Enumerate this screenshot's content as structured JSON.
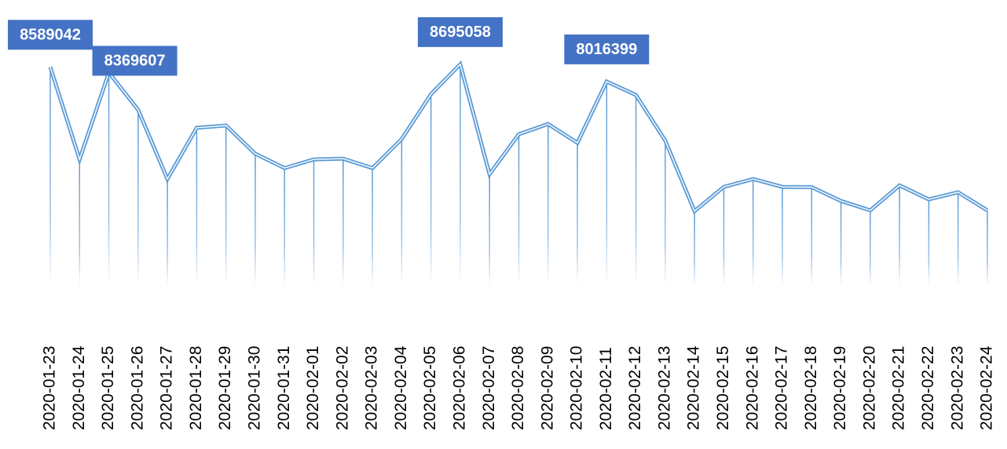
{
  "chart_data": {
    "type": "line",
    "categories": [
      "2020-01-23",
      "2020-01-24",
      "2020-01-25",
      "2020-01-26",
      "2020-01-27",
      "2020-01-28",
      "2020-01-29",
      "2020-01-30",
      "2020-01-31",
      "2020-02-01",
      "2020-02-02",
      "2020-02-03",
      "2020-02-04",
      "2020-02-05",
      "2020-02-06",
      "2020-02-07",
      "2020-02-08",
      "2020-02-09",
      "2020-02-10",
      "2020-02-11",
      "2020-02-12",
      "2020-02-13",
      "2020-02-14",
      "2020-02-15",
      "2020-02-16",
      "2020-02-17",
      "2020-02-18",
      "2020-02-19",
      "2020-02-20",
      "2020-02-21",
      "2020-02-22",
      "2020-02-23",
      "2020-02-24"
    ],
    "values": [
      8589042,
      4960000,
      8369607,
      6910000,
      4190000,
      6200000,
      6290000,
      5180000,
      4620000,
      4960000,
      4990000,
      4620000,
      5760000,
      7520000,
      8695058,
      4380000,
      5950000,
      6350000,
      5610000,
      8016399,
      7490000,
      5700000,
      2930000,
      3880000,
      4190000,
      3880000,
      3870000,
      3330000,
      2960000,
      3940000,
      3390000,
      3670000,
      2960000
    ],
    "data_label_indices": [
      0,
      2,
      14,
      19
    ],
    "color": "#5b9bd5",
    "label_color": "#4472c4",
    "ylim": [
      0,
      9000000
    ]
  }
}
